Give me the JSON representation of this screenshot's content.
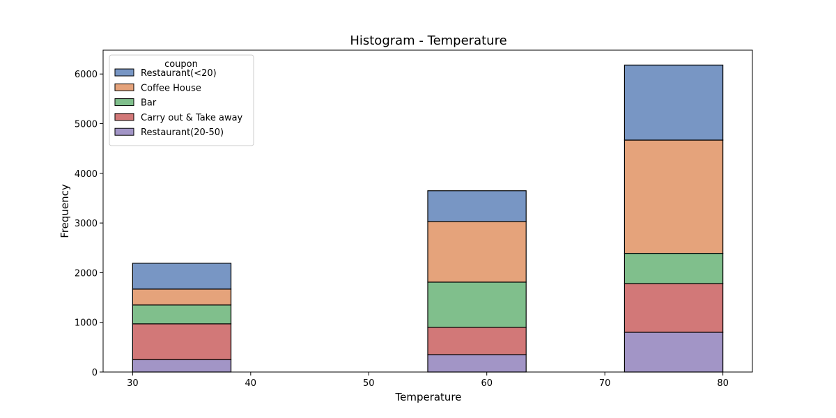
{
  "chart_data": {
    "type": "bar",
    "stacked": true,
    "title": "Histogram - Temperature",
    "xlabel": "Temperature",
    "ylabel": "Frequency",
    "xlim": [
      27.5,
      82.5
    ],
    "ylim": [
      0,
      6480
    ],
    "xticks": [
      30,
      40,
      50,
      60,
      70,
      80
    ],
    "yticks": [
      0,
      1000,
      2000,
      3000,
      4000,
      5000,
      6000
    ],
    "bin_width": 8.333,
    "bins": [
      {
        "start": 30,
        "end": 38.333
      },
      {
        "start": 38.333,
        "end": 46.667
      },
      {
        "start": 46.667,
        "end": 55
      },
      {
        "start": 55,
        "end": 63.333
      },
      {
        "start": 63.333,
        "end": 71.667
      },
      {
        "start": 71.667,
        "end": 80
      }
    ],
    "legend": {
      "title": "coupon",
      "placement": "upper left"
    },
    "grid": false,
    "series": [
      {
        "name": "Restaurant(20-50)",
        "color": "#a295c6",
        "values": [
          250,
          0,
          0,
          350,
          0,
          800
        ]
      },
      {
        "name": "Carry out & Take away",
        "color": "#d27878",
        "values": [
          720,
          0,
          0,
          550,
          0,
          980
        ]
      },
      {
        "name": "Bar",
        "color": "#80bf8c",
        "values": [
          380,
          0,
          0,
          910,
          0,
          610
        ]
      },
      {
        "name": "Coffee House",
        "color": "#e5a37b",
        "values": [
          320,
          0,
          0,
          1220,
          0,
          2280
        ]
      },
      {
        "name": "Restaurant(<20)",
        "color": "#7896c4",
        "values": [
          520,
          0,
          0,
          620,
          0,
          1510
        ]
      }
    ]
  }
}
